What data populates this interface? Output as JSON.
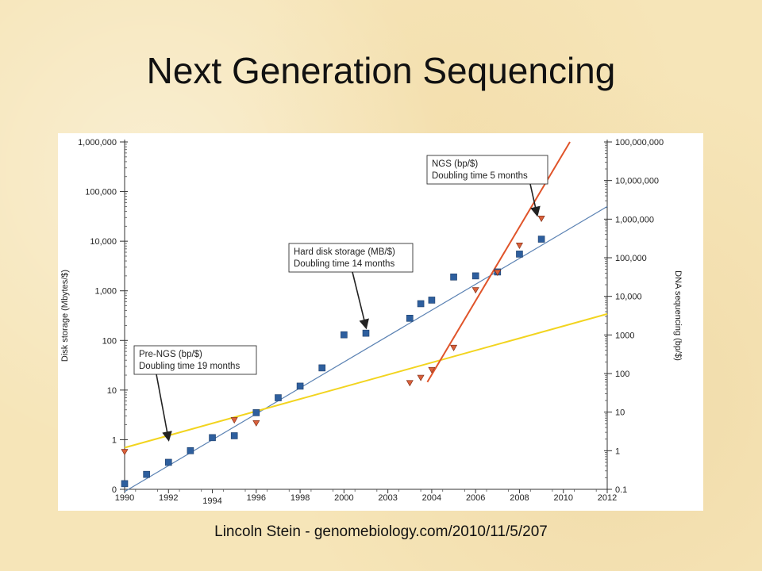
{
  "slide": {
    "title": "Next Generation Sequencing",
    "caption": "Lincoln Stein - genomebiology.com/2010/11/5/207"
  },
  "colors": {
    "disk": "#2e5f9e",
    "disk_line": "#5b82b3",
    "ngs": "#e0542a",
    "pre_ngs": "#f2d41f",
    "triangle": "#d9603b"
  },
  "chart_data": {
    "type": "scatter",
    "title": "",
    "xlabel": "",
    "ylabel_left": "Disk storage (Mbytes/$)",
    "ylabel_right": "DNA sequencing (bp/$)",
    "x_ticks": [
      "1990",
      "1992",
      "1994",
      "1996",
      "1998",
      "2000",
      "2003",
      "2004",
      "2006",
      "2008",
      "2010",
      "2012"
    ],
    "left_ticks": [
      {
        "value": 0,
        "label": "0"
      },
      {
        "value": 1,
        "label": "1"
      },
      {
        "value": 10,
        "label": "10"
      },
      {
        "value": 100,
        "label": "100"
      },
      {
        "value": 1000,
        "label": "1,000"
      },
      {
        "value": 10000,
        "label": "10,000"
      },
      {
        "value": 100000,
        "label": "100,000"
      },
      {
        "value": 1000000,
        "label": "1,000,000"
      }
    ],
    "right_ticks": [
      {
        "value": 0.1,
        "label": "0.1"
      },
      {
        "value": 1,
        "label": "1"
      },
      {
        "value": 10,
        "label": "10"
      },
      {
        "value": 100,
        "label": "100"
      },
      {
        "value": 1000,
        "label": "1000"
      },
      {
        "value": 10000,
        "label": "10,000"
      },
      {
        "value": 100000,
        "label": "100,000"
      },
      {
        "value": 1000000,
        "label": "1,000,000"
      },
      {
        "value": 10000000,
        "label": "10,000,000"
      },
      {
        "value": 100000000,
        "label": "100,000,000"
      }
    ],
    "left_scale": "log",
    "right_scale": "log",
    "xlim": [
      "1990",
      "2012"
    ],
    "left_ylim": [
      0.1,
      1000000
    ],
    "right_ylim": [
      0.1,
      100000000
    ],
    "series": [
      {
        "name": "Hard disk storage (MB/$)",
        "axis": "left",
        "marker": "square",
        "points": [
          {
            "x": "1990",
            "y": 0.13
          },
          {
            "x": "1991",
            "y": 0.2
          },
          {
            "x": "1992",
            "y": 0.35
          },
          {
            "x": "1993",
            "y": 0.6
          },
          {
            "x": "1994",
            "y": 1.1
          },
          {
            "x": "1995",
            "y": 1.2
          },
          {
            "x": "1996",
            "y": 3.5
          },
          {
            "x": "1997",
            "y": 7
          },
          {
            "x": "1998",
            "y": 12
          },
          {
            "x": "1999",
            "y": 28
          },
          {
            "x": "2000",
            "y": 130
          },
          {
            "x": "2001",
            "y": 140
          },
          {
            "x": "2003",
            "y": 280
          },
          {
            "x": "2003.5",
            "y": 550
          },
          {
            "x": "2004",
            "y": 650
          },
          {
            "x": "2005",
            "y": 1900
          },
          {
            "x": "2006",
            "y": 2000
          },
          {
            "x": "2007",
            "y": 2400
          },
          {
            "x": "2008",
            "y": 5500
          },
          {
            "x": "2009",
            "y": 11000
          }
        ]
      },
      {
        "name": "DNA sequencing (bp/$)",
        "axis": "right",
        "marker": "triangle",
        "points": [
          {
            "x": "1990",
            "y": 0.9
          },
          {
            "x": "1995",
            "y": 6
          },
          {
            "x": "1996",
            "y": 5
          },
          {
            "x": "2003",
            "y": 55
          },
          {
            "x": "2003.5",
            "y": 75
          },
          {
            "x": "2004",
            "y": 120
          },
          {
            "x": "2005",
            "y": 450
          },
          {
            "x": "2006",
            "y": 14000
          },
          {
            "x": "2007",
            "y": 40000
          },
          {
            "x": "2008",
            "y": 200000
          },
          {
            "x": "2009",
            "y": 1000000
          }
        ]
      }
    ],
    "trend_lines": [
      {
        "name": "Hard disk storage trend",
        "axis": "left",
        "from": {
          "x": "1990",
          "y": 0.09
        },
        "to": {
          "x": "2012",
          "y": 50000
        }
      },
      {
        "name": "Pre-NGS trend",
        "axis": "right",
        "from": {
          "x": "1990",
          "y": 1.2
        },
        "to": {
          "x": "2012",
          "y": 3500
        }
      },
      {
        "name": "NGS trend",
        "axis": "right",
        "from": {
          "x": "2003.8",
          "y": 60
        },
        "to": {
          "x": "2010.3",
          "y": 100000000
        }
      }
    ],
    "annotations": [
      {
        "lines": [
          "NGS (bp/$)",
          "Doubling time 5 months"
        ],
        "arrow_to": {
          "x": "2008.8",
          "y": 1000000
        },
        "axis": "right"
      },
      {
        "lines": [
          "Hard disk storage (MB/$)",
          "Doubling time 14 months"
        ],
        "arrow_to": {
          "x": "2001",
          "y": 150
        },
        "axis": "left"
      },
      {
        "lines": [
          "Pre-NGS (bp/$)",
          "Doubling time 19 months"
        ],
        "arrow_to": {
          "x": "1992",
          "y": 1.5
        },
        "axis": "right"
      }
    ]
  }
}
